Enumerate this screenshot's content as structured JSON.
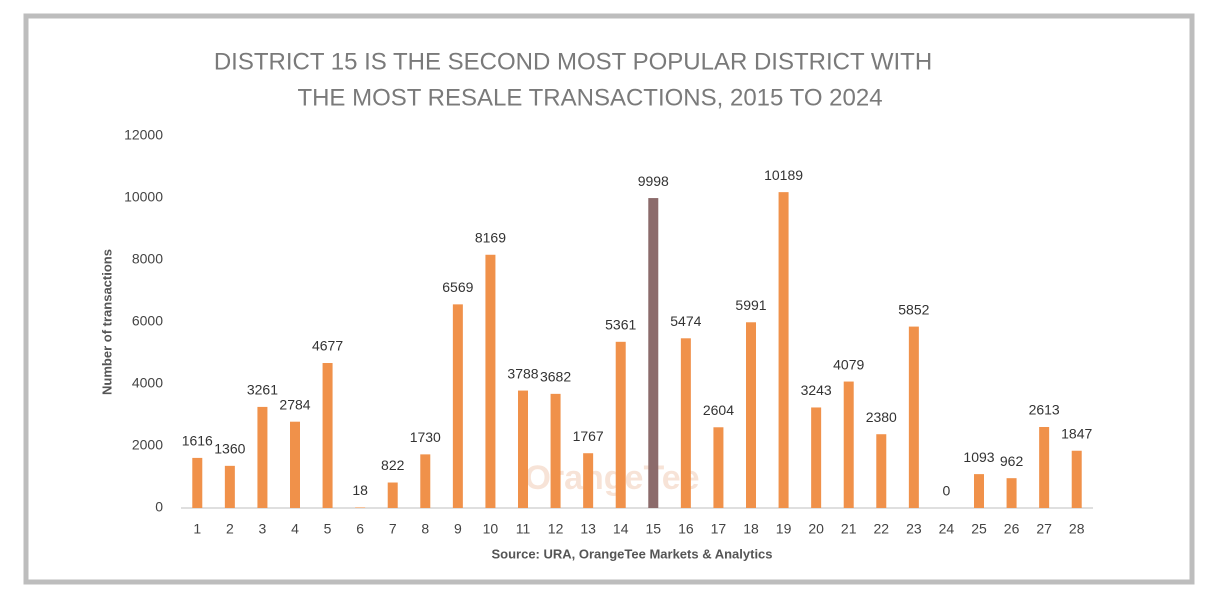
{
  "chart_data": {
    "type": "bar",
    "title": [
      "DISTRICT 15 IS THE SECOND MOST POPULAR DISTRICT WITH",
      "THE MOST RESALE TRANSACTIONS, 2015 TO 2024"
    ],
    "y_label": "Number of transactions",
    "x_label": "Source: URA, OrangeTee Markets & Analytics",
    "watermark": "OrangeTee",
    "categories": [
      "1",
      "2",
      "3",
      "4",
      "5",
      "6",
      "7",
      "8",
      "9",
      "10",
      "11",
      "12",
      "13",
      "14",
      "15",
      "16",
      "17",
      "18",
      "19",
      "20",
      "21",
      "22",
      "23",
      "24",
      "25",
      "26",
      "27",
      "28"
    ],
    "values": [
      1616,
      1360,
      3261,
      2784,
      4677,
      18,
      822,
      1730,
      6569,
      8169,
      3788,
      3682,
      1767,
      5361,
      9998,
      5474,
      2604,
      5991,
      10189,
      3243,
      4079,
      2380,
      5852,
      0,
      1093,
      962,
      2613,
      1847
    ],
    "colors": [
      "#f0914a",
      "#f0914a",
      "#f0914a",
      "#f0914a",
      "#f0914a",
      "#f0914a",
      "#f0914a",
      "#f0914a",
      "#f0914a",
      "#f0914a",
      "#f0914a",
      "#f0914a",
      "#f0914a",
      "#f0914a",
      "#8c6b6b",
      "#f0914a",
      "#f0914a",
      "#f0914a",
      "#f0914a",
      "#f0914a",
      "#f0914a",
      "#f0914a",
      "#f0914a",
      "#f0914a",
      "#f0914a",
      "#f0914a",
      "#f0914a",
      "#f0914a"
    ],
    "ylim": [
      0,
      12000
    ],
    "yticks": [
      0,
      2000,
      4000,
      6000,
      8000,
      10000,
      12000
    ],
    "grid": false
  }
}
